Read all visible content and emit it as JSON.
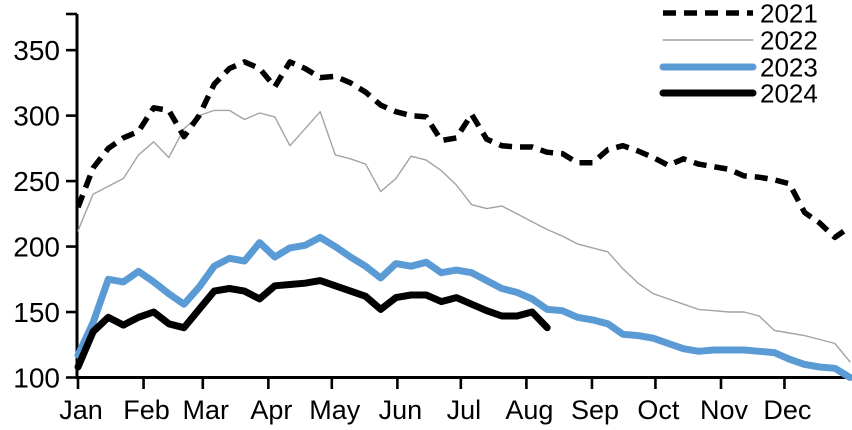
{
  "chart_data": {
    "type": "line",
    "title": "",
    "x_axis": {
      "tick_labels": [
        "Jan",
        "Feb",
        "Mar",
        "Apr",
        "May",
        "Jun",
        "Jul",
        "Aug",
        "Sep",
        "Oct",
        "Nov",
        "Dec"
      ],
      "unit": "weekly points spanning Jan 1 to Dec 31"
    },
    "y_axis": {
      "tick_labels": [
        "100",
        "150",
        "200",
        "250",
        "300",
        "350"
      ],
      "min": 100,
      "max": 375,
      "tick_step": 50
    },
    "grid": false,
    "legend": {
      "position": "top-right",
      "entries": [
        "2021",
        "2022",
        "2023",
        "2024"
      ]
    },
    "series": [
      {
        "name": "2021",
        "color": "#000000",
        "style": "dashed",
        "width": 5.5,
        "values": [
          230,
          260,
          275,
          283,
          288,
          306,
          304,
          284,
          300,
          324,
          336,
          341,
          336,
          322,
          341,
          336,
          329,
          330,
          325,
          318,
          308,
          303,
          300,
          299,
          281,
          283,
          301,
          282,
          277,
          276,
          276,
          272,
          271,
          264,
          264,
          274,
          277,
          273,
          268,
          262,
          267,
          263,
          261,
          259,
          254,
          253,
          251,
          248,
          226,
          218,
          207,
          215
        ]
      },
      {
        "name": "2022",
        "color": "#a3a3a3",
        "style": "solid",
        "width": 1.4,
        "values": [
          212,
          240,
          246,
          252,
          270,
          280,
          268,
          290,
          300,
          304,
          304,
          297,
          302,
          299,
          277,
          290,
          303,
          270,
          267,
          263,
          242,
          252,
          269,
          266,
          258,
          247,
          232,
          229,
          231,
          225,
          219,
          213,
          208,
          202,
          199,
          196,
          183,
          172,
          164,
          160,
          156,
          152,
          151,
          150,
          150,
          147,
          136,
          134,
          132,
          129,
          126,
          112
        ]
      },
      {
        "name": "2023",
        "color": "#5b9bd5",
        "style": "solid",
        "width": 7,
        "values": [
          117,
          142,
          175,
          173,
          181,
          173,
          164,
          156,
          169,
          185,
          191,
          189,
          203,
          192,
          199,
          201,
          207,
          200,
          192,
          185,
          176,
          187,
          185,
          188,
          180,
          182,
          180,
          174,
          168,
          165,
          160,
          152,
          151,
          146,
          144,
          141,
          133,
          132,
          130,
          126,
          122,
          120,
          121,
          121,
          121,
          120,
          119,
          114,
          110,
          108,
          107,
          100
        ]
      },
      {
        "name": "2024",
        "color": "#000000",
        "style": "solid",
        "width": 7,
        "values": [
          108,
          135,
          146,
          140,
          146,
          150,
          141,
          138,
          152,
          166,
          168,
          166,
          160,
          170,
          171,
          172,
          174,
          170,
          166,
          162,
          152,
          161,
          163,
          163,
          158,
          161,
          156,
          151,
          147,
          147,
          150,
          138
        ]
      }
    ]
  }
}
